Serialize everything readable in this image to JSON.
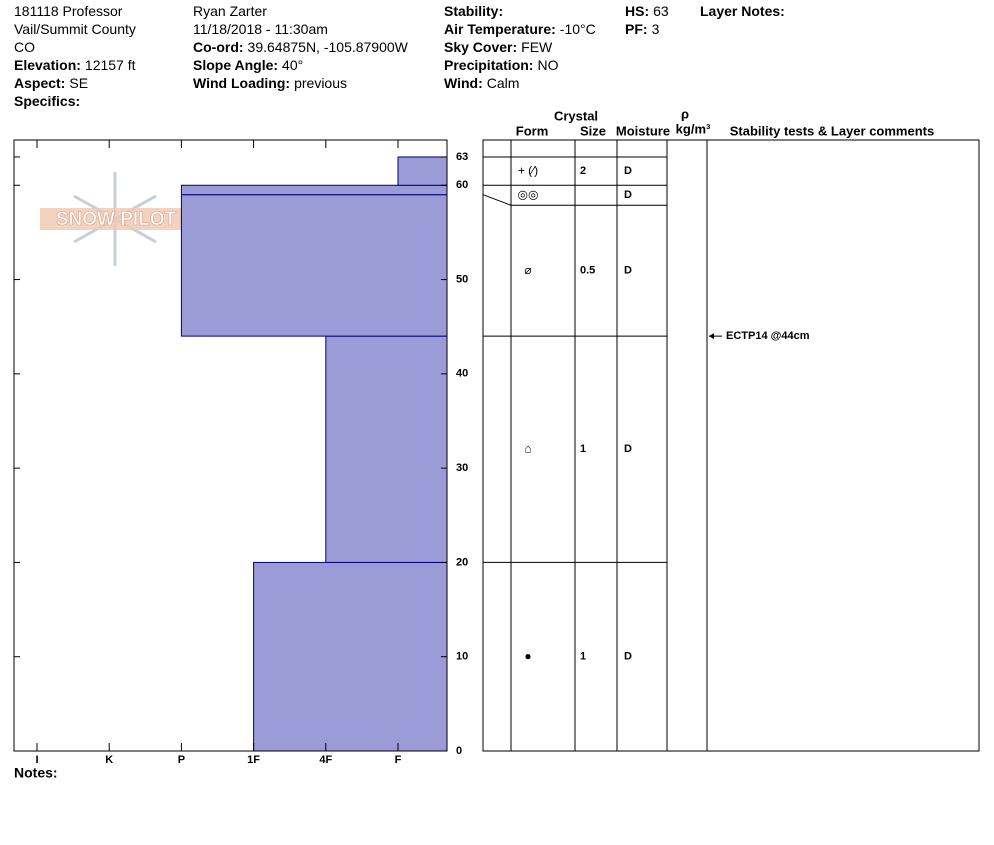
{
  "header": {
    "columns": [
      [
        {
          "value": "181118 Professor"
        },
        {
          "value": "Vail/Summit County"
        },
        {
          "value": "CO"
        },
        {
          "label": "Elevation:",
          "value": "12157 ft"
        },
        {
          "label": "Aspect:",
          "value": "SE"
        },
        {
          "label": "Specifics:"
        }
      ],
      [
        {
          "value": "Ryan Zarter"
        },
        {
          "value": "11/18/2018 - 11:30am"
        },
        {
          "label": "Co-ord:",
          "value": "39.64875N, -105.87900W"
        },
        {
          "label": "Slope Angle:",
          "value": "40°"
        },
        {
          "label": "Wind Loading:",
          "value": "previous"
        }
      ],
      [
        {
          "label": "Stability:"
        },
        {
          "label": "Air Temperature:",
          "value": "-10°C"
        },
        {
          "label": "Sky Cover:",
          "value": "FEW"
        },
        {
          "label": "Precipitation:",
          "value": "NO"
        },
        {
          "label": "Wind:",
          "value": "Calm"
        }
      ],
      [
        {
          "label": "HS:",
          "value": "63"
        },
        {
          "label": "PF:",
          "value": "3"
        }
      ],
      [
        {
          "label": "Layer Notes:"
        }
      ]
    ]
  },
  "logo": "SNOW PILOT",
  "profile": {
    "ylim": [
      0,
      64.8
    ],
    "yticks": [
      0,
      10,
      20,
      30,
      40,
      50,
      60,
      63
    ],
    "hardness_scale": [
      "I",
      "K",
      "P",
      "1F",
      "4F",
      "F"
    ],
    "color": "#9b9bd7",
    "layers": [
      {
        "bottom": 0,
        "top": 20,
        "hardness": "1F"
      },
      {
        "bottom": 20,
        "top": 44,
        "hardness": "4F"
      },
      {
        "bottom": 44,
        "top": 59,
        "hardness": "P"
      },
      {
        "bottom": 59,
        "top": 60,
        "hardness": "P"
      },
      {
        "bottom": 60,
        "top": 63,
        "hardness": "F"
      }
    ]
  },
  "grains": {
    "headers": {
      "crystal": "Crystal",
      "form": "Form",
      "size": "Size",
      "moisture": "Moisture",
      "rho": "ρ",
      "density": "kg/m³",
      "comments": "Stability tests & Layer comments"
    },
    "layers": [
      {
        "bottom": 60,
        "top": 63,
        "form": "+ (∕)",
        "size": "2",
        "moisture": "D"
      },
      {
        "bottom": 59,
        "top": 60,
        "form": "◎◎",
        "moisture": "D"
      },
      {
        "bottom": 44,
        "top": 59,
        "form": "⌀",
        "size": "0.5",
        "moisture": "D"
      },
      {
        "bottom": 20,
        "top": 44,
        "form": "⌂",
        "size": "1",
        "moisture": "D"
      },
      {
        "bottom": 0,
        "top": 20,
        "form": "●",
        "size": "1",
        "moisture": "D"
      }
    ],
    "tests": [
      {
        "text": "ECTP14 @44cm",
        "depth": 44
      }
    ]
  },
  "notes": "Notes:"
}
